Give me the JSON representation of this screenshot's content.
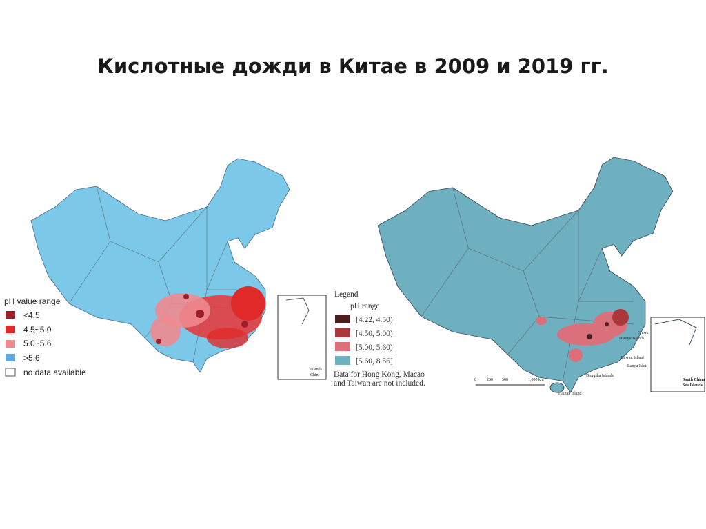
{
  "title": "Кислотные дожди в Китае в 2009 и 2019 гг.",
  "map_2009": {
    "legend": {
      "title": "pH value range",
      "items": [
        "<4.5",
        "4.5~5.0",
        "5.0~5.6",
        ">5.6",
        "no data available"
      ]
    },
    "inset_label": [
      "Islands",
      "Chin"
    ]
  },
  "map_2019": {
    "legend": {
      "title": "Legend",
      "subtitle": "pH range",
      "items": [
        "[4.22, 4.50)",
        "[4.50, 5.00)",
        "[5.00, 5.60)",
        "[5.60, 8.56]"
      ],
      "note": [
        "Data for Hong Kong, Macao",
        "and Taiwan are not included."
      ]
    },
    "scale_bar": [
      "0",
      "250",
      "500",
      "1,000 km"
    ],
    "places": [
      "Diaoyu Islands",
      "Chiwei",
      "Taiwan Island",
      "Lanyu Islet",
      "Dongsha Islands",
      "Hainan Island"
    ],
    "inset_label": [
      "South China",
      "Sea Islands"
    ]
  }
}
